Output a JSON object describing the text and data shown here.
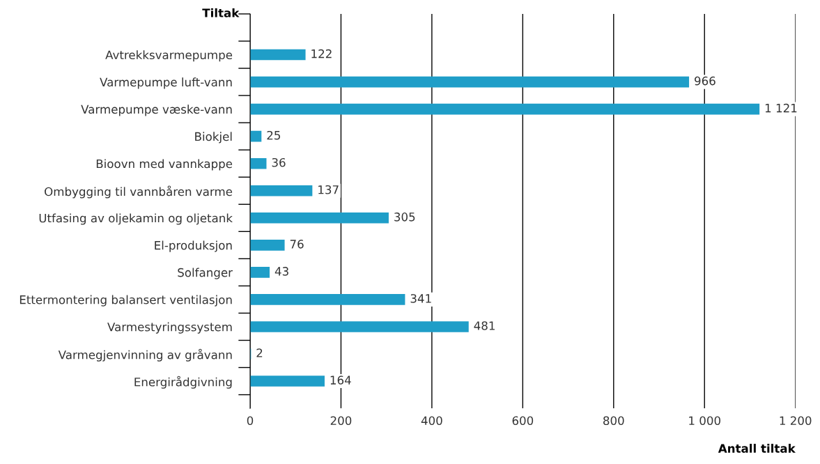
{
  "chart_data": {
    "type": "bar",
    "orientation": "horizontal",
    "ylabel": "Tiltak",
    "xlabel": "Antall tiltak",
    "categories": [
      "Avtrekksvarmepumpe",
      "Varmepumpe luft-vann",
      "Varmepumpe væske-vann",
      "Biokjel",
      "Bioovn med vannkappe",
      "Ombygging til vannbåren varme",
      "Utfasing av oljekamin og oljetank",
      "El-produksjon",
      "Solfanger",
      "Ettermontering balansert ventilasjon",
      "Varmestyringssystem",
      "Varmegjenvinning av gråvann",
      "Energirådgivning"
    ],
    "values": [
      122,
      966,
      1121,
      25,
      36,
      137,
      305,
      76,
      43,
      341,
      481,
      2,
      164
    ],
    "value_labels": [
      "122",
      "966",
      "1 121",
      "25",
      "36",
      "137",
      "305",
      "76",
      "43",
      "341",
      "481",
      "2",
      "164"
    ],
    "color": "#1f9ec8",
    "xlim": [
      0,
      1200
    ],
    "xticks": [
      0,
      200,
      400,
      600,
      800,
      {
        "value": 1000,
        "label": "1 000"
      },
      {
        "value": 1200,
        "label": "1 200"
      }
    ],
    "grid": "x"
  }
}
